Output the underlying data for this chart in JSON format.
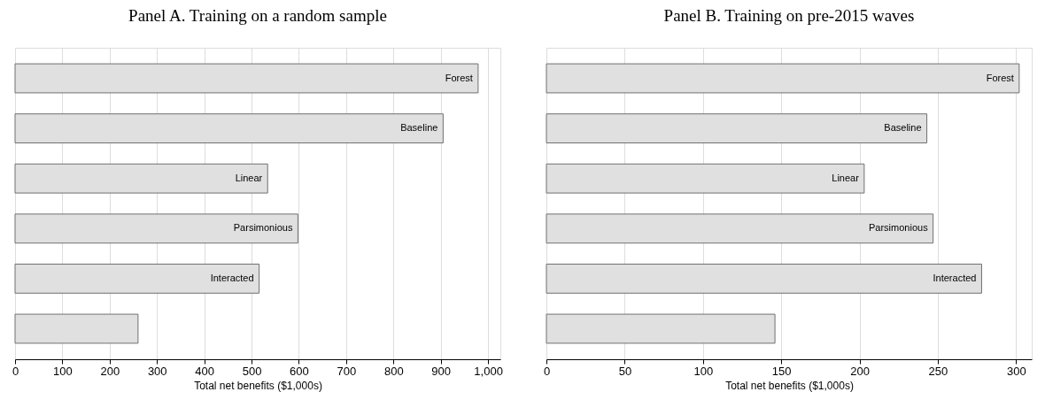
{
  "chart_data": [
    {
      "type": "bar",
      "orientation": "horizontal",
      "title": "Panel A. Training on a random sample",
      "xlabel": "Total net benefits ($1,000s)",
      "categories": [
        "Forest",
        "Baseline",
        "Linear",
        "Parsimonious",
        "Interacted",
        null
      ],
      "values": [
        979,
        905,
        534,
        598,
        516,
        260
      ],
      "color": "#e0e0e0",
      "xlim": [
        0,
        1026
      ],
      "xticks": [
        0,
        100,
        200,
        300,
        400,
        500,
        600,
        700,
        800,
        900,
        {
          "value": 1000,
          "label": "1,000"
        }
      ],
      "grid": "x",
      "tick_labels": "x"
    },
    {
      "type": "bar",
      "orientation": "horizontal",
      "title": "Panel B. Training on pre-2015 waves",
      "xlabel": "Total net benefits ($1,000s)",
      "categories": [
        "Forest",
        "Baseline",
        "Linear",
        "Parsimonious",
        "Interacted",
        null
      ],
      "values": [
        302,
        243,
        203,
        247,
        278,
        146
      ],
      "color": "#e0e0e0",
      "xlim": [
        0,
        310
      ],
      "xticks": [
        0,
        50,
        100,
        150,
        200,
        250,
        300
      ],
      "grid": "x",
      "tick_labels": "x"
    }
  ]
}
